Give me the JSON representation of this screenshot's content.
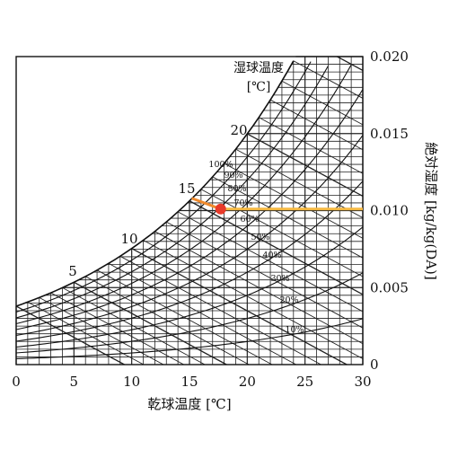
{
  "chart_data": {
    "type": "line",
    "xlabel": "乾球温度 [℃]",
    "ylabel": "絶対湿度 [kg/kg(DA)]",
    "wet_bulb_title": "湿球温度",
    "wet_bulb_unit": "[℃]",
    "xlim": [
      0,
      30
    ],
    "ylim": [
      0,
      0.02
    ],
    "x_ticks": [
      "0",
      "5",
      "10",
      "15",
      "20",
      "25",
      "30"
    ],
    "y_ticks": [
      "0",
      "0.005",
      "0.010",
      "0.015",
      "0.020"
    ],
    "wet_bulb_labels": [
      "5",
      "10",
      "15",
      "20"
    ],
    "rh_labels": [
      "100%",
      "90%",
      "80%",
      "70%",
      "60%",
      "50%",
      "40%",
      "30%",
      "20%",
      "10%"
    ],
    "rh_levels": [
      1.0,
      0.9,
      0.8,
      0.7,
      0.6,
      0.5,
      0.4,
      0.3,
      0.2,
      0.1
    ],
    "highlight_point": {
      "x": 17.7,
      "y": 0.0101
    },
    "highlight_color": "#e83a2a",
    "horizontal_line": {
      "y": 0.0101,
      "x_from": 17.7,
      "x_to": 30,
      "color": "#f5b942"
    },
    "wet_bulb_segment": {
      "x_from": 15.2,
      "y_from": 0.0108,
      "x_to": 17.7,
      "y_to": 0.0101,
      "color": "#f08a2c"
    },
    "grid": true
  }
}
